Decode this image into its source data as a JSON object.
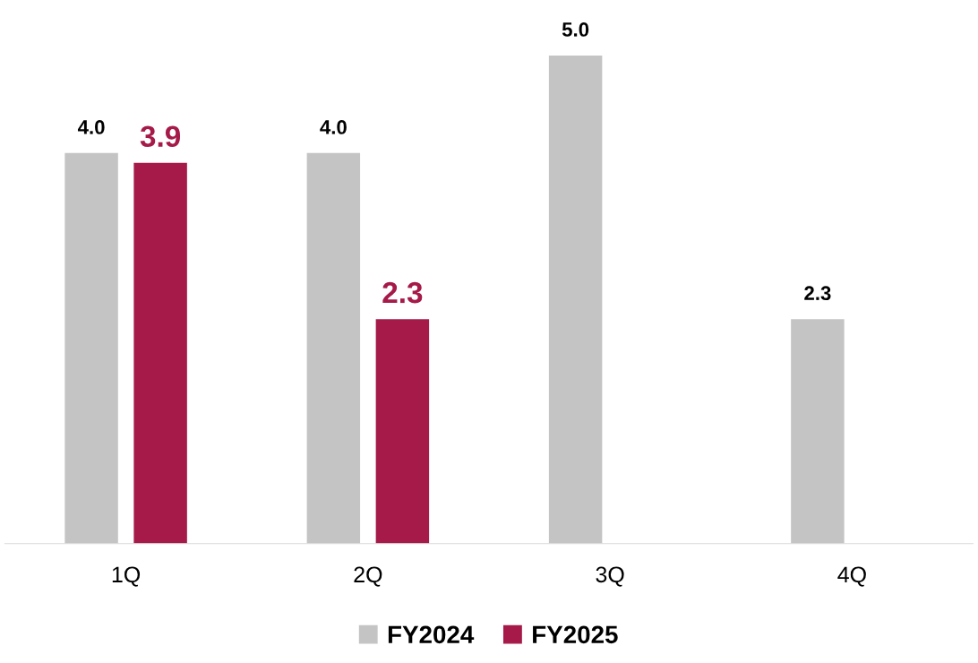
{
  "chart_data": {
    "type": "bar",
    "categories": [
      "1Q",
      "2Q",
      "3Q",
      "4Q"
    ],
    "series": [
      {
        "name": "FY2024",
        "color": "#c4c4c4",
        "values": [
          4.0,
          4.0,
          5.0,
          2.3
        ],
        "value_labels": [
          "4.0",
          "4.0",
          "5.0",
          "2.3"
        ]
      },
      {
        "name": "FY2025",
        "color": "#a51a49",
        "values": [
          3.9,
          2.3,
          null,
          null
        ],
        "value_labels": [
          "3.9",
          "2.3",
          null,
          null
        ]
      }
    ],
    "legend": "bottom",
    "grid": false,
    "tick_labels": "x"
  }
}
